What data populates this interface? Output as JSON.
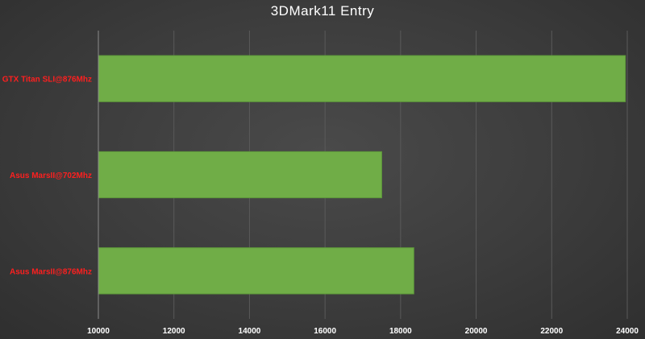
{
  "chart_data": {
    "type": "bar",
    "orientation": "horizontal",
    "title": "3DMark11 Entry",
    "categories": [
      "GTX Titan SLI@876Mhz",
      "Asus MarsII@702Mhz",
      "Asus MarsII@876Mhz"
    ],
    "values": [
      23950,
      17500,
      18350
    ],
    "xlabel": "",
    "ylabel": "",
    "xlim": [
      10000,
      24000
    ],
    "xticks": [
      "10000",
      "12000",
      "14000",
      "16000",
      "18000",
      "20000",
      "22000",
      "24000"
    ],
    "grid": true,
    "legend": "none",
    "colors": {
      "bar": "#70ad47",
      "bar_edge": "#5e9a3a",
      "category_label": "#ff1f1f",
      "tick_label": "#ffffff",
      "grid": "#5a5a5a",
      "axis": "#8a8a8a"
    }
  }
}
